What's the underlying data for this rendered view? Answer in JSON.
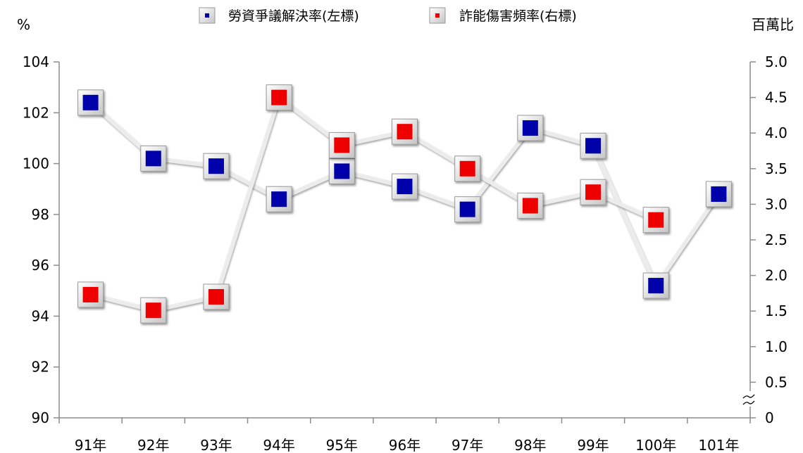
{
  "chart_data": {
    "type": "line",
    "categories": [
      "91年",
      "92年",
      "93年",
      "94年",
      "95年",
      "96年",
      "97年",
      "98年",
      "99年",
      "100年",
      "101年"
    ],
    "left_axis": {
      "unit": "%",
      "ylim": [
        90,
        104
      ],
      "ticks": [
        "90",
        "92",
        "94",
        "96",
        "98",
        "100",
        "102",
        "104"
      ]
    },
    "right_axis": {
      "unit": "百萬比",
      "ylim": [
        0,
        5.0
      ],
      "ticks": [
        "0",
        "0.5",
        "1.0",
        "1.5",
        "2.0",
        "2.5",
        "3.0",
        "3.5",
        "4.0",
        "4.5",
        "5.0"
      ],
      "axis_break": true
    },
    "series": [
      {
        "name": "勞資爭議解決率(左標)",
        "axis": "left",
        "color": "#0000aa",
        "values": [
          102.4,
          100.2,
          99.9,
          98.6,
          99.7,
          99.1,
          98.2,
          101.4,
          100.7,
          95.2,
          98.8
        ]
      },
      {
        "name": "詐能傷害頻率(右標)",
        "axis": "right",
        "color": "#ee0000",
        "values": [
          1.73,
          1.51,
          1.7,
          4.5,
          3.83,
          4.02,
          3.5,
          2.98,
          3.17,
          2.78,
          null
        ]
      }
    ],
    "grid": false,
    "legend_position": "top"
  }
}
